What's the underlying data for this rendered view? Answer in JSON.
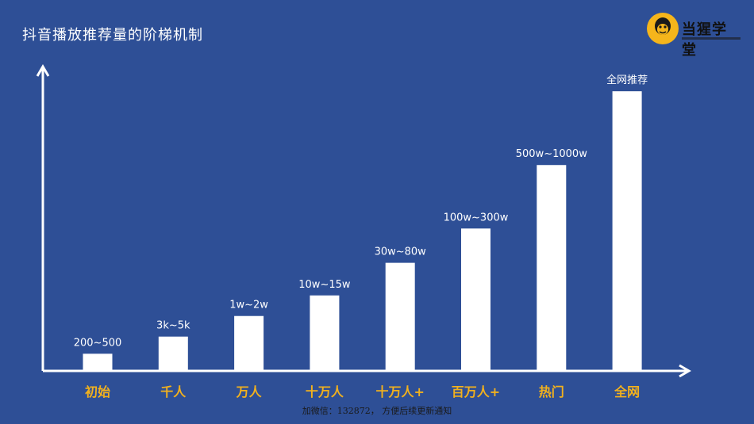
{
  "title": "抖音播放推荐量的阶梯机制",
  "logo": {
    "text": "当猩学堂",
    "icon": "monkey-face-icon",
    "color": "#f5b51b"
  },
  "footer": "加微信：132872， 方便后续更新通知",
  "colors": {
    "background": "#2e4f96",
    "bar": "#ffffff",
    "category": "#f2b11d",
    "axis": "#ffffff"
  },
  "chart_data": {
    "type": "bar",
    "title": "抖音播放推荐量的阶梯机制",
    "xlabel": "",
    "ylabel": "",
    "categories": [
      "初始",
      "千人",
      "万人",
      "十万人",
      "十万人+",
      "百万人+",
      "热门",
      "全网"
    ],
    "value_labels": [
      "200~500",
      "3k~5k",
      "1w~2w",
      "10w~15w",
      "30w~80w",
      "100w~300w",
      "500w~1000w",
      "全网推荐"
    ],
    "values": [
      1,
      2,
      3.2,
      4.4,
      6.3,
      8.3,
      12,
      16.3
    ],
    "ylim": [
      0,
      17
    ],
    "grid": false,
    "legend": "none",
    "axes_arrows": true
  }
}
